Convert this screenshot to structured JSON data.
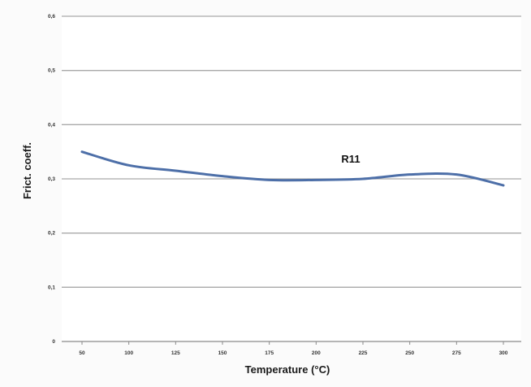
{
  "chart_data": {
    "type": "line",
    "title": "",
    "xlabel": "Temperature (°C)",
    "ylabel": "Frict. coeff.",
    "x_ticks": [
      "50",
      "100",
      "125",
      "150",
      "175",
      "200",
      "225",
      "250",
      "275",
      "300"
    ],
    "y_ticks": [
      "0",
      "0,1",
      "0,2",
      "0,3",
      "0,4",
      "0,5",
      "0,6"
    ],
    "ylim": [
      0,
      0.6
    ],
    "grid": true,
    "series": [
      {
        "name": "R11",
        "color": "#4d6fa8",
        "x": [
          50,
          100,
          125,
          150,
          175,
          200,
          225,
          250,
          275,
          300
        ],
        "y": [
          0.35,
          0.325,
          0.315,
          0.305,
          0.298,
          0.298,
          0.3,
          0.308,
          0.308,
          0.288
        ]
      }
    ]
  }
}
